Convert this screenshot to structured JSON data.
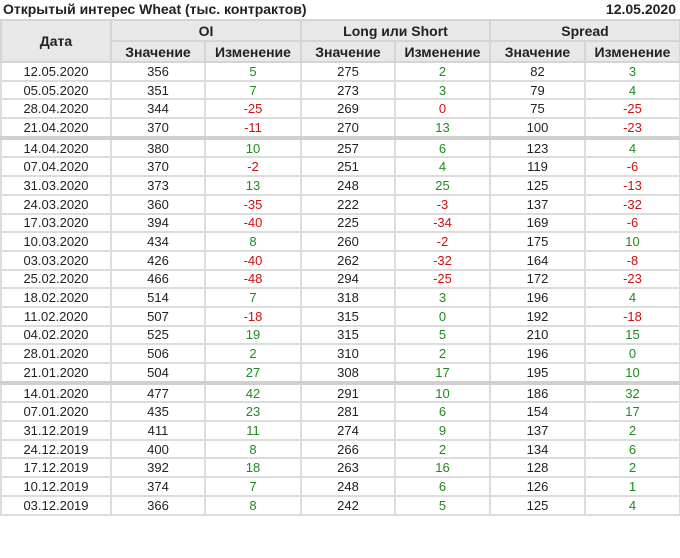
{
  "header": {
    "title": "Открытый интерес Wheat (тыс. контрактов)",
    "date": "12.05.2020"
  },
  "columns": {
    "date": "Дата",
    "groups": [
      "OI",
      "Long или Short",
      "Spread"
    ],
    "value": "Значение",
    "change": "Изменение"
  },
  "colors": {
    "up": "#1e8c1e",
    "down": "#d01010"
  },
  "rows": [
    [
      "12.05.2020",
      "356",
      [
        "5",
        "up"
      ],
      "275",
      [
        "2",
        "up"
      ],
      "82",
      [
        "3",
        "up"
      ]
    ],
    [
      "05.05.2020",
      "351",
      [
        "7",
        "up"
      ],
      "273",
      [
        "3",
        "up"
      ],
      "79",
      [
        "4",
        "up"
      ]
    ],
    [
      "28.04.2020",
      "344",
      [
        "-25",
        "down"
      ],
      "269",
      [
        "0",
        "down"
      ],
      "75",
      [
        "-25",
        "down"
      ]
    ],
    [
      "21.04.2020",
      "370",
      [
        "-11",
        "down"
      ],
      "270",
      [
        "13",
        "up"
      ],
      "100",
      [
        "-23",
        "down"
      ]
    ],
    [
      "14.04.2020",
      "380",
      [
        "10",
        "up"
      ],
      "257",
      [
        "6",
        "up"
      ],
      "123",
      [
        "4",
        "up"
      ]
    ],
    [
      "07.04.2020",
      "370",
      [
        "-2",
        "down"
      ],
      "251",
      [
        "4",
        "up"
      ],
      "119",
      [
        "-6",
        "down"
      ]
    ],
    [
      "31.03.2020",
      "373",
      [
        "13",
        "up"
      ],
      "248",
      [
        "25",
        "up"
      ],
      "125",
      [
        "-13",
        "down"
      ]
    ],
    [
      "24.03.2020",
      "360",
      [
        "-35",
        "down"
      ],
      "222",
      [
        "-3",
        "down"
      ],
      "137",
      [
        "-32",
        "down"
      ]
    ],
    [
      "17.03.2020",
      "394",
      [
        "-40",
        "down"
      ],
      "225",
      [
        "-34",
        "down"
      ],
      "169",
      [
        "-6",
        "down"
      ]
    ],
    [
      "10.03.2020",
      "434",
      [
        "8",
        "up"
      ],
      "260",
      [
        "-2",
        "down"
      ],
      "175",
      [
        "10",
        "up"
      ]
    ],
    [
      "03.03.2020",
      "426",
      [
        "-40",
        "down"
      ],
      "262",
      [
        "-32",
        "down"
      ],
      "164",
      [
        "-8",
        "down"
      ]
    ],
    [
      "25.02.2020",
      "466",
      [
        "-48",
        "down"
      ],
      "294",
      [
        "-25",
        "down"
      ],
      "172",
      [
        "-23",
        "down"
      ]
    ],
    [
      "18.02.2020",
      "514",
      [
        "7",
        "up"
      ],
      "318",
      [
        "3",
        "up"
      ],
      "196",
      [
        "4",
        "up"
      ]
    ],
    [
      "11.02.2020",
      "507",
      [
        "-18",
        "down"
      ],
      "315",
      [
        "0",
        "up"
      ],
      "192",
      [
        "-18",
        "down"
      ]
    ],
    [
      "04.02.2020",
      "525",
      [
        "19",
        "up"
      ],
      "315",
      [
        "5",
        "up"
      ],
      "210",
      [
        "15",
        "up"
      ]
    ],
    [
      "28.01.2020",
      "506",
      [
        "2",
        "up"
      ],
      "310",
      [
        "2",
        "up"
      ],
      "196",
      [
        "0",
        "up"
      ]
    ],
    [
      "21.01.2020",
      "504",
      [
        "27",
        "up"
      ],
      "308",
      [
        "17",
        "up"
      ],
      "195",
      [
        "10",
        "up"
      ]
    ],
    [
      "14.01.2020",
      "477",
      [
        "42",
        "up"
      ],
      "291",
      [
        "10",
        "up"
      ],
      "186",
      [
        "32",
        "up"
      ]
    ],
    [
      "07.01.2020",
      "435",
      [
        "23",
        "up"
      ],
      "281",
      [
        "6",
        "up"
      ],
      "154",
      [
        "17",
        "up"
      ]
    ],
    [
      "31.12.2019",
      "411",
      [
        "11",
        "up"
      ],
      "274",
      [
        "9",
        "up"
      ],
      "137",
      [
        "2",
        "up"
      ]
    ],
    [
      "24.12.2019",
      "400",
      [
        "8",
        "up"
      ],
      "266",
      [
        "2",
        "up"
      ],
      "134",
      [
        "6",
        "up"
      ]
    ],
    [
      "17.12.2019",
      "392",
      [
        "18",
        "up"
      ],
      "263",
      [
        "16",
        "up"
      ],
      "128",
      [
        "2",
        "up"
      ]
    ],
    [
      "10.12.2019",
      "374",
      [
        "7",
        "up"
      ],
      "248",
      [
        "6",
        "up"
      ],
      "126",
      [
        "1",
        "up"
      ]
    ],
    [
      "03.12.2019",
      "366",
      [
        "8",
        "up"
      ],
      "242",
      [
        "5",
        "up"
      ],
      "125",
      [
        "4",
        "up"
      ]
    ]
  ]
}
